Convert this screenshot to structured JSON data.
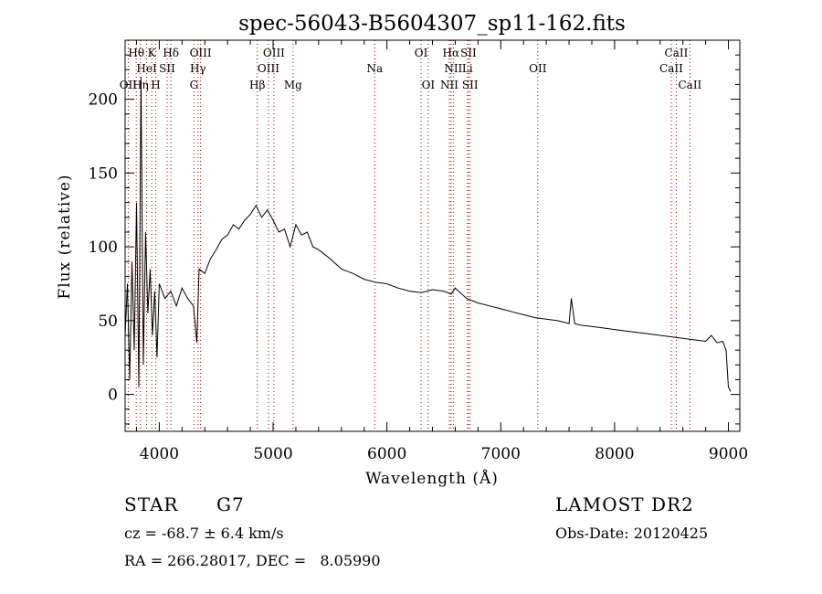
{
  "chart_data": {
    "type": "line",
    "title": "spec-56043-B5604307_sp11-162.fits",
    "xlabel": "Wavelength (Å)",
    "ylabel": "Flux (relative)",
    "xlim": [
      3700,
      9100
    ],
    "ylim": [
      -25,
      240
    ],
    "x_ticks": [
      4000,
      5000,
      6000,
      7000,
      8000,
      9000
    ],
    "y_ticks": [
      0,
      50,
      100,
      150,
      200
    ],
    "grid": false,
    "series": [
      {
        "color": "#000000",
        "x": [
          3700,
          3720,
          3740,
          3760,
          3780,
          3800,
          3820,
          3840,
          3860,
          3880,
          3900,
          3920,
          3940,
          3960,
          3980,
          4000,
          4050,
          4100,
          4150,
          4200,
          4250,
          4300,
          4330,
          4350,
          4400,
          4450,
          4500,
          4550,
          4600,
          4650,
          4700,
          4750,
          4800,
          4850,
          4900,
          4950,
          5000,
          5050,
          5100,
          5150,
          5200,
          5250,
          5300,
          5350,
          5400,
          5450,
          5500,
          5600,
          5700,
          5800,
          5900,
          6000,
          6100,
          6200,
          6300,
          6400,
          6500,
          6563,
          6600,
          6700,
          6800,
          6900,
          7000,
          7100,
          7200,
          7300,
          7400,
          7500,
          7600,
          7620,
          7650,
          7700,
          7800,
          7900,
          8000,
          8100,
          8200,
          8300,
          8400,
          8500,
          8600,
          8700,
          8800,
          8850,
          8900,
          8950,
          8980,
          9000,
          9020
        ],
        "y": [
          40,
          75,
          10,
          90,
          30,
          130,
          5,
          215,
          20,
          110,
          55,
          85,
          40,
          70,
          25,
          75,
          65,
          70,
          60,
          72,
          65,
          60,
          35,
          85,
          82,
          92,
          98,
          105,
          108,
          115,
          112,
          118,
          122,
          128,
          120,
          125,
          118,
          110,
          112,
          100,
          115,
          108,
          110,
          100,
          98,
          95,
          92,
          85,
          82,
          78,
          76,
          75,
          72,
          70,
          69,
          71,
          70,
          68,
          72,
          65,
          62,
          60,
          58,
          56,
          54,
          52,
          51,
          50,
          48,
          65,
          48,
          47,
          46,
          45,
          44,
          43,
          42,
          41,
          40,
          39,
          38,
          37,
          36,
          40,
          35,
          36,
          30,
          5,
          2
        ]
      }
    ],
    "lines": [
      {
        "name": "OII",
        "x": 3727,
        "row": 3
      },
      {
        "name": "Hθ",
        "x": 3798,
        "row": 1
      },
      {
        "name": "Hη",
        "x": 3835,
        "row": 3
      },
      {
        "name": "HeI",
        "x": 3889,
        "row": 2
      },
      {
        "name": "K",
        "x": 3934,
        "row": 1
      },
      {
        "name": "SII",
        "x": 4069,
        "row": 2
      },
      {
        "name": "H",
        "x": 3969,
        "row": 3
      },
      {
        "name": "Hδ",
        "x": 4102,
        "row": 1
      },
      {
        "name": "OIII",
        "x": 4363,
        "row": 1
      },
      {
        "name": "Hγ",
        "x": 4340,
        "row": 2
      },
      {
        "name": "G",
        "x": 4305,
        "row": 3
      },
      {
        "name": "Hβ",
        "x": 4861,
        "row": 3
      },
      {
        "name": "OIII",
        "x": 5007,
        "row": 1
      },
      {
        "name": "OIII",
        "x": 4959,
        "row": 2
      },
      {
        "name": "Mg",
        "x": 5175,
        "row": 3
      },
      {
        "name": "Na",
        "x": 5893,
        "row": 2
      },
      {
        "name": "OI",
        "x": 6300,
        "row": 1
      },
      {
        "name": "OI",
        "x": 6363,
        "row": 3
      },
      {
        "name": "Hα",
        "x": 6563,
        "row": 1
      },
      {
        "name": "SII",
        "x": 6716,
        "row": 1
      },
      {
        "name": "NII",
        "x": 6583,
        "row": 2
      },
      {
        "name": "NII",
        "x": 6548,
        "row": 3
      },
      {
        "name": "Li",
        "x": 6707,
        "row": 2
      },
      {
        "name": "SII",
        "x": 6731,
        "row": 3
      },
      {
        "name": "OII",
        "x": 7325,
        "row": 2
      },
      {
        "name": "CaII",
        "x": 8542,
        "row": 1
      },
      {
        "name": "CaII",
        "x": 8498,
        "row": 2
      },
      {
        "name": "CaII",
        "x": 8662,
        "row": 3
      }
    ]
  },
  "info": {
    "object_class": "STAR",
    "subclass": "G7",
    "survey": "LAMOST DR2",
    "cz": "cz = -68.7 ± 6.4 km/s",
    "obs_date": "Obs-Date: 20120425",
    "coords": "RA = 266.28017, DEC =   8.05990"
  }
}
